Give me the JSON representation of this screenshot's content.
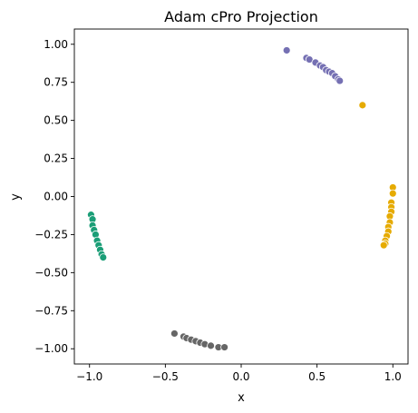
{
  "chart_data": {
    "type": "scatter",
    "title": "Adam cPro Projection",
    "xlabel": "x",
    "ylabel": "y",
    "xlim": [
      -1.1,
      1.1
    ],
    "ylim": [
      -1.1,
      1.1
    ],
    "xticks": [
      -1.0,
      -0.5,
      0.0,
      0.5,
      1.0
    ],
    "xtick_labels": [
      "−1.0",
      "−0.5",
      "0.0",
      "0.5",
      "1.0"
    ],
    "yticks": [
      -1.0,
      -0.75,
      -0.5,
      -0.25,
      0.0,
      0.25,
      0.5,
      0.75,
      1.0
    ],
    "ytick_labels": [
      "−1.00",
      "−0.75",
      "−0.50",
      "−0.25",
      "0.00",
      "0.25",
      "0.50",
      "0.75",
      "1.00"
    ],
    "grid": false,
    "legend": "none",
    "series": [
      {
        "color": "#7570b3",
        "points": [
          [
            0.3,
            0.96
          ],
          [
            0.43,
            0.91
          ],
          [
            0.45,
            0.9
          ],
          [
            0.49,
            0.88
          ],
          [
            0.52,
            0.86
          ],
          [
            0.54,
            0.85
          ],
          [
            0.56,
            0.83
          ],
          [
            0.58,
            0.82
          ],
          [
            0.6,
            0.81
          ],
          [
            0.62,
            0.79
          ],
          [
            0.64,
            0.77
          ],
          [
            0.65,
            0.76
          ]
        ]
      },
      {
        "color": "#e6ab02",
        "points": [
          [
            0.8,
            0.6
          ],
          [
            1.0,
            0.06
          ],
          [
            1.0,
            0.02
          ],
          [
            0.99,
            -0.04
          ],
          [
            0.99,
            -0.07
          ],
          [
            0.99,
            -0.1
          ],
          [
            0.98,
            -0.13
          ],
          [
            0.98,
            -0.17
          ],
          [
            0.97,
            -0.2
          ],
          [
            0.97,
            -0.23
          ],
          [
            0.96,
            -0.26
          ],
          [
            0.95,
            -0.29
          ],
          [
            0.95,
            -0.31
          ],
          [
            0.94,
            -0.32
          ]
        ]
      },
      {
        "color": "#1b9e77",
        "points": [
          [
            -0.99,
            -0.12
          ],
          [
            -0.98,
            -0.15
          ],
          [
            -0.98,
            -0.19
          ],
          [
            -0.97,
            -0.22
          ],
          [
            -0.96,
            -0.25
          ],
          [
            -0.95,
            -0.29
          ],
          [
            -0.94,
            -0.32
          ],
          [
            -0.93,
            -0.35
          ],
          [
            -0.92,
            -0.38
          ],
          [
            -0.91,
            -0.4
          ]
        ]
      },
      {
        "color": "#666666",
        "points": [
          [
            -0.44,
            -0.9
          ],
          [
            -0.38,
            -0.92
          ],
          [
            -0.36,
            -0.93
          ],
          [
            -0.33,
            -0.94
          ],
          [
            -0.3,
            -0.95
          ],
          [
            -0.27,
            -0.96
          ],
          [
            -0.24,
            -0.97
          ],
          [
            -0.2,
            -0.98
          ],
          [
            -0.15,
            -0.99
          ],
          [
            -0.11,
            -0.99
          ]
        ]
      }
    ]
  }
}
